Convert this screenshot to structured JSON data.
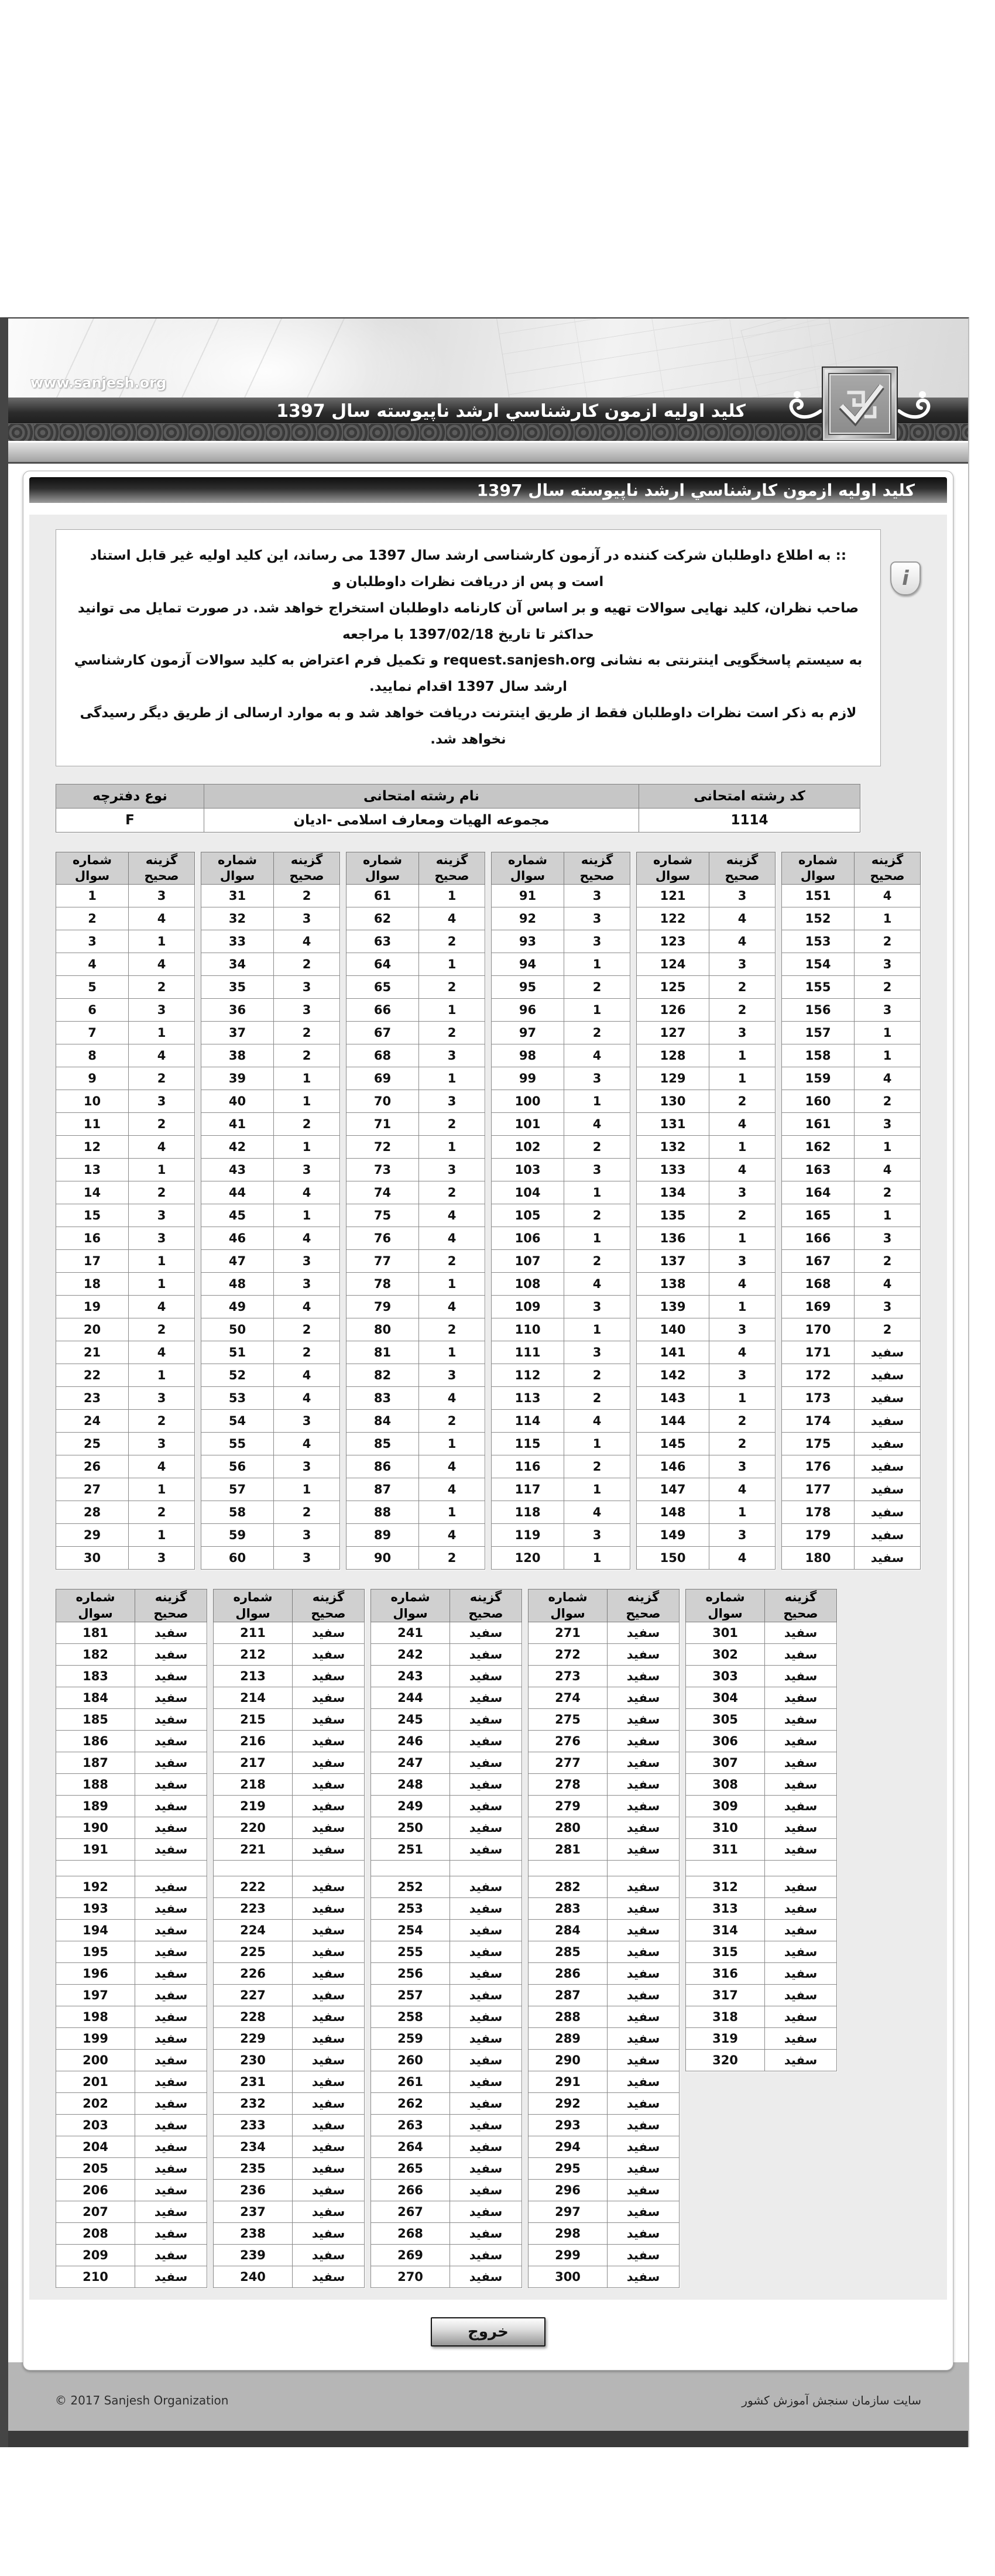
{
  "page": {
    "site_url": "www.sanjesh.org",
    "banner_title": "کلید اولیه ازمون کارشناسي ارشد ناپیوسته سال 1397",
    "card_title": "کلید اولیه ازمون کارشناسي ارشد ناپیوسته سال 1397"
  },
  "notice": {
    "lines": [
      ":: به اطلاع داوطلبان شرکت کننده در آزمون کارشناسی ارشد سال 1397 می رساند، این کلید اولیه غیر قابل استناد است و پس از دریافت نظرات داوطلبان و",
      "صاحب نظران، کلید نهایی سوالات تهیه و بر اساس آن کارنامه داوطلبان استخراج خواهد شد. در صورت تمایل می توانید حداکثر تا تاریخ 1397/02/18 با مراجعه",
      "به سیستم پاسخگویی اینترنتی به نشانی request.sanjesh.org و تکمیل فرم اعتراض به کلید سوالات آزمون کارشناسي ارشد سال 1397 اقدام نمایید.",
      "لازم به ذکر است نظرات داوطلبان فقط از طریق اینترنت دریافت خواهد شد و به موارد ارسالی از طریق دیگر رسیدگی نخواهد شد."
    ]
  },
  "info_table": {
    "headers": [
      "نوع دفترچه",
      "نام رشته امتحانی",
      "کد رشته امتحانی"
    ],
    "values": [
      "F",
      "مجموعه الهیات ومعارف اسلامی -ادیان",
      "1114"
    ]
  },
  "answer_table_headers": {
    "col_number": "شماره سوال",
    "col_answer": "گزینه صحیح"
  },
  "blank_label": "سفید",
  "answer_sections": [
    {
      "groups": [
        {
          "start": 1,
          "count": 30,
          "answers": [
            "3",
            "4",
            "1",
            "4",
            "2",
            "3",
            "1",
            "4",
            "2",
            "3",
            "2",
            "4",
            "1",
            "2",
            "3",
            "3",
            "1",
            "1",
            "4",
            "2",
            "4",
            "1",
            "3",
            "2",
            "3",
            "4",
            "1",
            "2",
            "1",
            "3"
          ]
        },
        {
          "start": 31,
          "count": 30,
          "answers": [
            "2",
            "3",
            "4",
            "2",
            "3",
            "3",
            "2",
            "2",
            "1",
            "1",
            "2",
            "1",
            "3",
            "4",
            "1",
            "4",
            "3",
            "3",
            "4",
            "2",
            "2",
            "4",
            "4",
            "3",
            "4",
            "3",
            "1",
            "2",
            "3",
            "3"
          ]
        },
        {
          "start": 61,
          "count": 30,
          "answers": [
            "1",
            "4",
            "2",
            "1",
            "2",
            "1",
            "2",
            "3",
            "1",
            "3",
            "2",
            "1",
            "3",
            "2",
            "4",
            "4",
            "2",
            "1",
            "4",
            "2",
            "1",
            "3",
            "4",
            "2",
            "1",
            "4",
            "4",
            "1",
            "4",
            "2"
          ]
        },
        {
          "start": 91,
          "count": 30,
          "answers": [
            "3",
            "3",
            "3",
            "1",
            "2",
            "1",
            "2",
            "4",
            "3",
            "1",
            "4",
            "2",
            "3",
            "1",
            "2",
            "1",
            "2",
            "4",
            "3",
            "1",
            "3",
            "2",
            "2",
            "4",
            "1",
            "2",
            "1",
            "4",
            "3",
            "1"
          ]
        },
        {
          "start": 121,
          "count": 30,
          "answers": [
            "3",
            "4",
            "4",
            "3",
            "2",
            "2",
            "3",
            "1",
            "1",
            "2",
            "4",
            "1",
            "4",
            "3",
            "2",
            "1",
            "3",
            "4",
            "1",
            "3",
            "4",
            "3",
            "1",
            "2",
            "2",
            "3",
            "4",
            "1",
            "3",
            "4"
          ]
        },
        {
          "start": 151,
          "count": 30,
          "answers": [
            "4",
            "1",
            "2",
            "3",
            "2",
            "3",
            "1",
            "1",
            "4",
            "2",
            "3",
            "1",
            "4",
            "2",
            "1",
            "3",
            "2",
            "4",
            "3",
            "2",
            "سفید",
            "سفید",
            "سفید",
            "سفید",
            "سفید",
            "سفید",
            "سفید",
            "سفید",
            "سفید",
            "سفید"
          ]
        }
      ]
    },
    {
      "groups": [
        {
          "start": 181,
          "count": 30,
          "spacer_after_index": 10,
          "fill_answer": "سفید"
        },
        {
          "start": 211,
          "count": 30,
          "spacer_after_index": 10,
          "fill_answer": "سفید"
        },
        {
          "start": 241,
          "count": 30,
          "spacer_after_index": 10,
          "fill_answer": "سفید"
        },
        {
          "start": 271,
          "count": 30,
          "spacer_after_index": 10,
          "fill_answer": "سفید"
        },
        {
          "start": 301,
          "count": 20,
          "spacer_after_index": 10,
          "fill_answer": "سفید"
        }
      ]
    }
  ],
  "exit_button_label": "خروج",
  "footer": {
    "copyright": "© 2017 Sanjesh Organization",
    "site_name": "سایت سازمان سنجش آموزش کشور"
  },
  "colors": {
    "frame_border": "#454545",
    "titlebar_dark": "#0e0e0e",
    "panel_bg": "#ececec",
    "table_header_bg": "#d0d0d0",
    "footer_band": "#b6b6b6",
    "bottom_bar": "#3a3a3a"
  }
}
